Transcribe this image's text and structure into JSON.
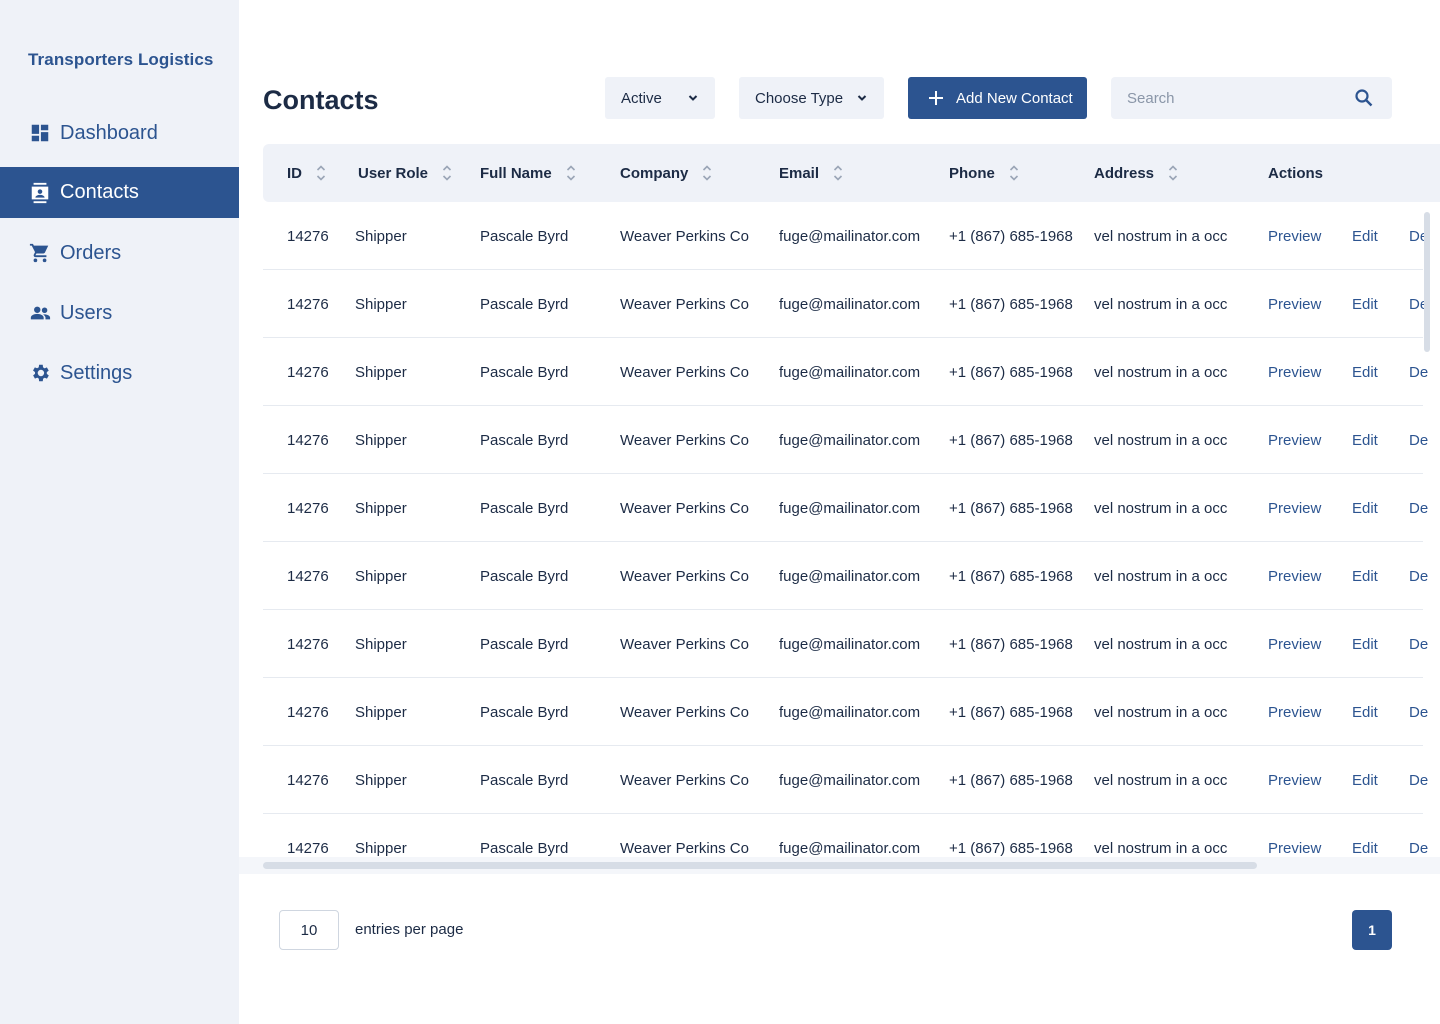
{
  "brand": "Transporters Logistics",
  "sidebar": {
    "items": [
      {
        "label": "Dashboard",
        "icon": "dashboard-icon",
        "active": false
      },
      {
        "label": "Contacts",
        "icon": "contacts-icon",
        "active": true
      },
      {
        "label": "Orders",
        "icon": "cart-icon",
        "active": false
      },
      {
        "label": "Users",
        "icon": "users-icon",
        "active": false
      },
      {
        "label": "Settings",
        "icon": "gear-icon",
        "active": false
      }
    ]
  },
  "header": {
    "title": "Contacts",
    "status_filter": "Active",
    "type_filter": "Choose Type",
    "add_label": "Add New Contact",
    "search_placeholder": "Search"
  },
  "table": {
    "columns": [
      "ID",
      "User Role",
      "Full Name",
      "Company",
      "Email",
      "Phone",
      "Address",
      "Actions"
    ],
    "actions": [
      "Preview",
      "Edit",
      "De"
    ],
    "rows": [
      {
        "id": "14276",
        "role": "Shipper",
        "name": "Pascale Byrd",
        "company": "Weaver Perkins Co",
        "email": "fuge@mailinator.com",
        "phone": "+1 (867) 685-1968",
        "address": "vel nostrum in a occ"
      },
      {
        "id": "14276",
        "role": "Shipper",
        "name": "Pascale Byrd",
        "company": "Weaver Perkins Co",
        "email": "fuge@mailinator.com",
        "phone": "+1 (867) 685-1968",
        "address": "vel nostrum in a occ"
      },
      {
        "id": "14276",
        "role": "Shipper",
        "name": "Pascale Byrd",
        "company": "Weaver Perkins Co",
        "email": "fuge@mailinator.com",
        "phone": "+1 (867) 685-1968",
        "address": "vel nostrum in a occ"
      },
      {
        "id": "14276",
        "role": "Shipper",
        "name": "Pascale Byrd",
        "company": "Weaver Perkins Co",
        "email": "fuge@mailinator.com",
        "phone": "+1 (867) 685-1968",
        "address": "vel nostrum in a occ"
      },
      {
        "id": "14276",
        "role": "Shipper",
        "name": "Pascale Byrd",
        "company": "Weaver Perkins Co",
        "email": "fuge@mailinator.com",
        "phone": "+1 (867) 685-1968",
        "address": "vel nostrum in a occ"
      },
      {
        "id": "14276",
        "role": "Shipper",
        "name": "Pascale Byrd",
        "company": "Weaver Perkins Co",
        "email": "fuge@mailinator.com",
        "phone": "+1 (867) 685-1968",
        "address": "vel nostrum in a occ"
      },
      {
        "id": "14276",
        "role": "Shipper",
        "name": "Pascale Byrd",
        "company": "Weaver Perkins Co",
        "email": "fuge@mailinator.com",
        "phone": "+1 (867) 685-1968",
        "address": "vel nostrum in a occ"
      },
      {
        "id": "14276",
        "role": "Shipper",
        "name": "Pascale Byrd",
        "company": "Weaver Perkins Co",
        "email": "fuge@mailinator.com",
        "phone": "+1 (867) 685-1968",
        "address": "vel nostrum in a occ"
      },
      {
        "id": "14276",
        "role": "Shipper",
        "name": "Pascale Byrd",
        "company": "Weaver Perkins Co",
        "email": "fuge@mailinator.com",
        "phone": "+1 (867) 685-1968",
        "address": "vel nostrum in a occ"
      },
      {
        "id": "14276",
        "role": "Shipper",
        "name": "Pascale Byrd",
        "company": "Weaver Perkins Co",
        "email": "fuge@mailinator.com",
        "phone": "+1 (867) 685-1968",
        "address": "vel nostrum in a occ"
      }
    ]
  },
  "footer": {
    "per_page_value": "10",
    "per_page_label": "entries per page",
    "current_page": "1"
  },
  "colors": {
    "accent": "#2c5490",
    "sidebar_bg": "#eff2f8",
    "text": "#1c2b45"
  }
}
